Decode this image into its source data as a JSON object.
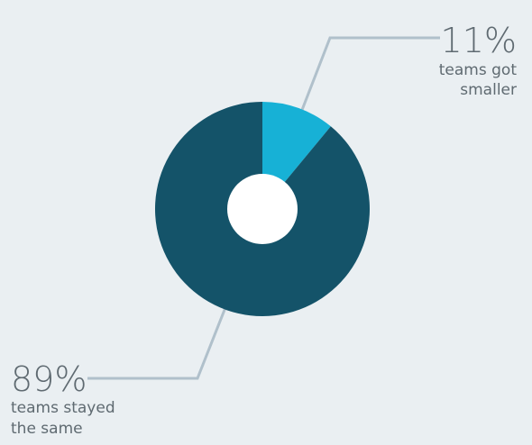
{
  "chart_data": {
    "type": "pie",
    "style": "donut",
    "categories": [
      "teams got smaller",
      "teams stayed the same"
    ],
    "values": [
      11,
      89
    ],
    "slices": [
      {
        "label": "11%",
        "description": [
          "teams got",
          "smaller"
        ],
        "value": 11,
        "color": "#17b1d6"
      },
      {
        "label": "89%",
        "description": [
          "teams stayed",
          "the same"
        ],
        "value": 89,
        "color": "#145369"
      }
    ],
    "leader_line_color": "#b0c0cb",
    "text_color": "#5f6a71",
    "hole_color": "#ffffff"
  }
}
